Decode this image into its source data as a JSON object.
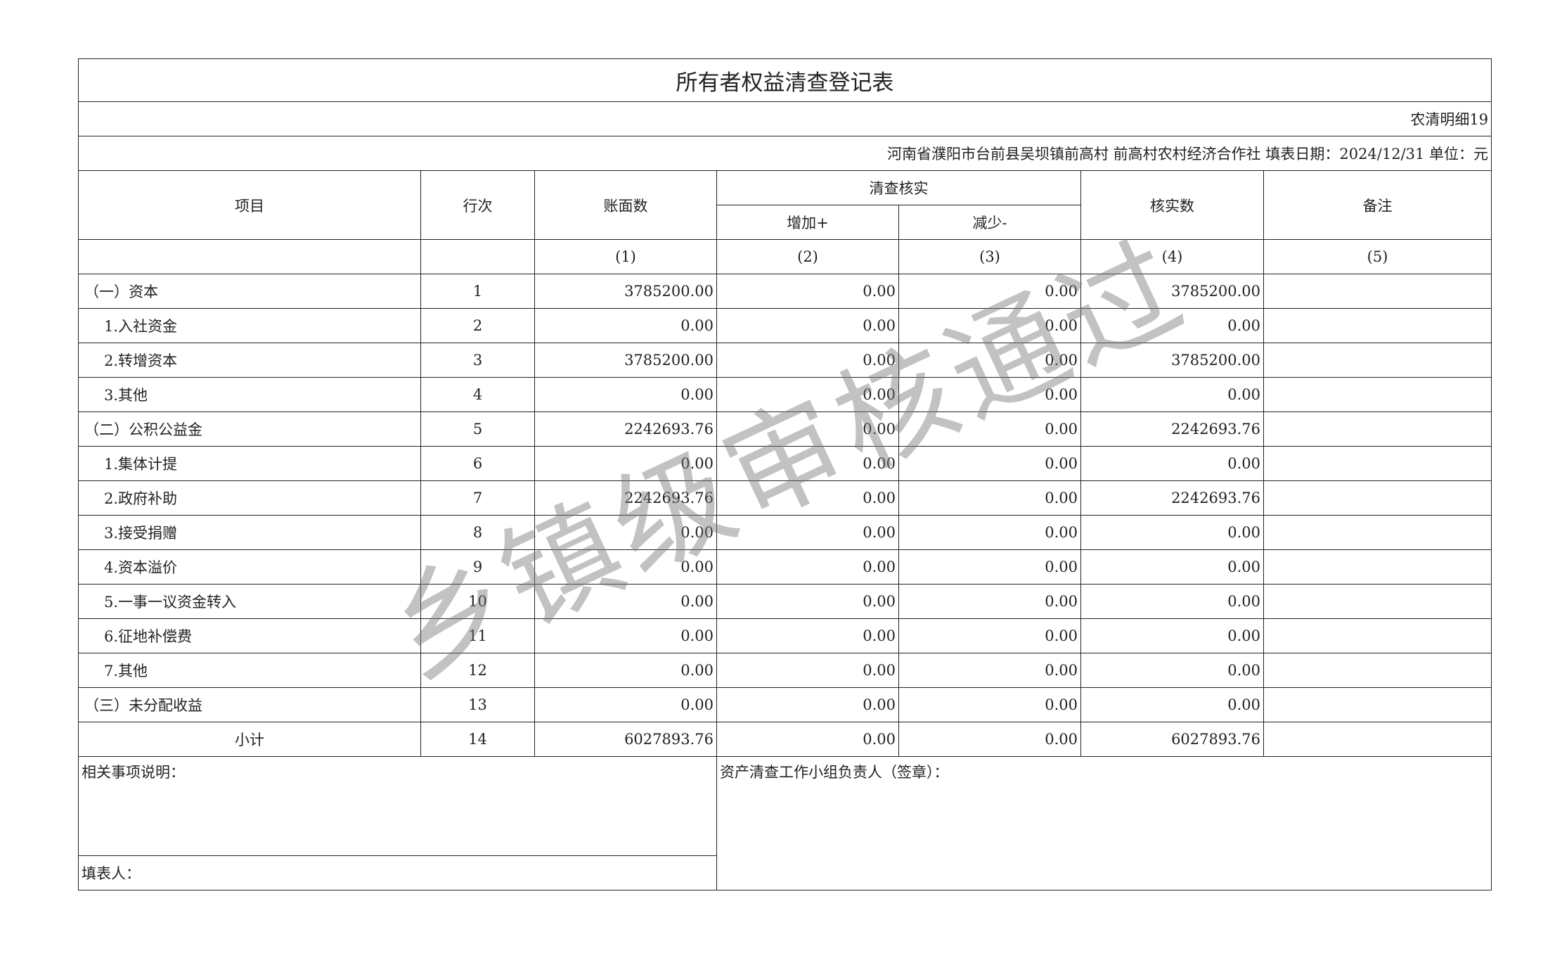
{
  "title": "所有者权益清查登记表",
  "form_code": "农清明细19",
  "org_line": "河南省濮阳市台前县吴坝镇前高村  前高村农村经济合作社  填表日期：2024/12/31  单位：元",
  "headers": {
    "item": "项目",
    "line_no": "行次",
    "book": "账面数",
    "verify_group": "清查核实",
    "increase": "增加+",
    "decrease": "减少-",
    "verified": "核实数",
    "remark": "备注",
    "col1": "(1)",
    "col2": "(2)",
    "col3": "(3)",
    "col4": "(4)",
    "col5": "(5)"
  },
  "rows": [
    {
      "item": "（一）资本",
      "no": "1",
      "book": "3785200.00",
      "inc": "0.00",
      "dec": "0.00",
      "ver": "3785200.00",
      "remark": ""
    },
    {
      "item": "1.入社资金",
      "no": "2",
      "book": "0.00",
      "inc": "0.00",
      "dec": "0.00",
      "ver": "0.00",
      "remark": ""
    },
    {
      "item": "2.转增资本",
      "no": "3",
      "book": "3785200.00",
      "inc": "0.00",
      "dec": "0.00",
      "ver": "3785200.00",
      "remark": ""
    },
    {
      "item": "3.其他",
      "no": "4",
      "book": "0.00",
      "inc": "0.00",
      "dec": "0.00",
      "ver": "0.00",
      "remark": ""
    },
    {
      "item": "（二）公积公益金",
      "no": "5",
      "book": "2242693.76",
      "inc": "0.00",
      "dec": "0.00",
      "ver": "2242693.76",
      "remark": ""
    },
    {
      "item": "1.集体计提",
      "no": "6",
      "book": "0.00",
      "inc": "0.00",
      "dec": "0.00",
      "ver": "0.00",
      "remark": ""
    },
    {
      "item": "2.政府补助",
      "no": "7",
      "book": "2242693.76",
      "inc": "0.00",
      "dec": "0.00",
      "ver": "2242693.76",
      "remark": ""
    },
    {
      "item": "3.接受捐赠",
      "no": "8",
      "book": "0.00",
      "inc": "0.00",
      "dec": "0.00",
      "ver": "0.00",
      "remark": ""
    },
    {
      "item": "4.资本溢价",
      "no": "9",
      "book": "0.00",
      "inc": "0.00",
      "dec": "0.00",
      "ver": "0.00",
      "remark": ""
    },
    {
      "item": "5.一事一议资金转入",
      "no": "10",
      "book": "0.00",
      "inc": "0.00",
      "dec": "0.00",
      "ver": "0.00",
      "remark": ""
    },
    {
      "item": "6.征地补偿费",
      "no": "11",
      "book": "0.00",
      "inc": "0.00",
      "dec": "0.00",
      "ver": "0.00",
      "remark": ""
    },
    {
      "item": "7.其他",
      "no": "12",
      "book": "0.00",
      "inc": "0.00",
      "dec": "0.00",
      "ver": "0.00",
      "remark": ""
    },
    {
      "item": "（三）未分配收益",
      "no": "13",
      "book": "0.00",
      "inc": "0.00",
      "dec": "0.00",
      "ver": "0.00",
      "remark": ""
    },
    {
      "item": "小计",
      "no": "14",
      "book": "6027893.76",
      "inc": "0.00",
      "dec": "0.00",
      "ver": "6027893.76",
      "remark": ""
    }
  ],
  "notes_label": "相关事项说明：",
  "preparer_label": "填表人：",
  "leader_label": "资产清查工作小组负责人（签章）：",
  "watermark": "乡镇级审核通过"
}
